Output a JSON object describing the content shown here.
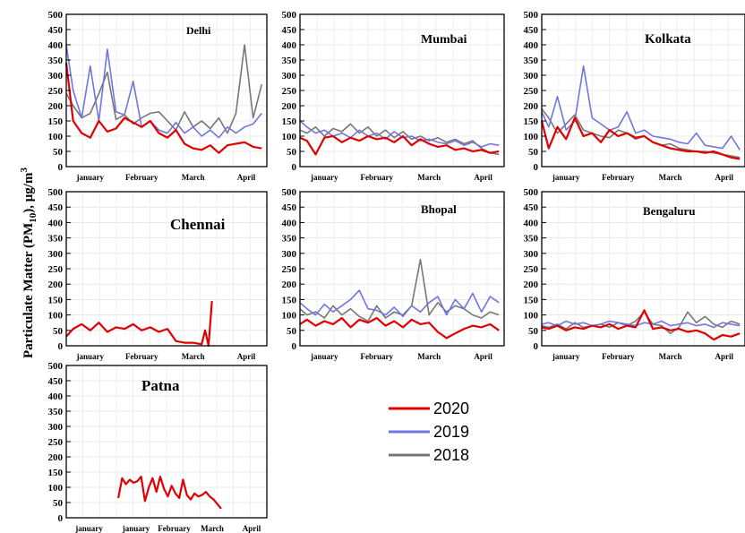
{
  "figure": {
    "ylabel": "Particulate Matter (PM10), μg/m3",
    "ylabel_main": "Particulate Matter (PM",
    "ylabel_sub": "10",
    "ylabel_unit": "), μg/m",
    "ylabel_sup": "3"
  },
  "legend": [
    {
      "label": "2020",
      "color": "#e00000"
    },
    {
      "label": "2019",
      "color": "#6f77dd"
    },
    {
      "label": "2018",
      "color": "#777777"
    }
  ],
  "chart_data": [
    {
      "type": "line",
      "title": "Delhi",
      "ylim": [
        0,
        500
      ],
      "yticks": [
        "0",
        "50",
        "100",
        "150",
        "200",
        "250",
        "300",
        "350",
        "400",
        "450",
        "500"
      ],
      "month_labels": [
        "january",
        "February",
        "March",
        "April"
      ],
      "x_unit": "day of year (1 Jan – late April)",
      "series": [
        {
          "name": "2020",
          "x": [
            1,
            5,
            10,
            15,
            20,
            25,
            30,
            35,
            40,
            45,
            50,
            55,
            60,
            65,
            70,
            75,
            80,
            85,
            90,
            95,
            100,
            105,
            110,
            115
          ],
          "values": [
            340,
            150,
            110,
            95,
            150,
            115,
            125,
            160,
            145,
            130,
            150,
            110,
            95,
            120,
            75,
            60,
            55,
            70,
            45,
            70,
            75,
            80,
            65,
            60
          ]
        },
        {
          "name": "2019",
          "x": [
            1,
            5,
            10,
            15,
            20,
            25,
            30,
            35,
            40,
            45,
            50,
            55,
            60,
            65,
            70,
            75,
            80,
            85,
            90,
            95,
            100,
            105,
            110,
            115
          ],
          "values": [
            400,
            250,
            160,
            330,
            150,
            385,
            180,
            170,
            280,
            130,
            150,
            120,
            110,
            145,
            110,
            130,
            100,
            120,
            95,
            130,
            110,
            130,
            140,
            175
          ]
        },
        {
          "name": "2018",
          "x": [
            1,
            5,
            10,
            15,
            20,
            25,
            30,
            35,
            40,
            45,
            50,
            55,
            60,
            65,
            70,
            75,
            80,
            85,
            90,
            95,
            100,
            105,
            110,
            115
          ],
          "values": [
            240,
            200,
            160,
            175,
            240,
            310,
            155,
            170,
            140,
            160,
            175,
            180,
            150,
            120,
            180,
            130,
            150,
            125,
            160,
            110,
            175,
            400,
            160,
            270
          ]
        }
      ]
    },
    {
      "type": "line",
      "title": "Mumbai",
      "ylim": [
        0,
        500
      ],
      "yticks": [
        "0",
        "50",
        "100",
        "150",
        "200",
        "250",
        "300",
        "350",
        "400",
        "450",
        "500"
      ],
      "month_labels": [
        "january",
        "February",
        "March",
        "April"
      ],
      "x_unit": "day of year (1 Jan – late April)",
      "series": [
        {
          "name": "2020",
          "x": [
            1,
            5,
            10,
            15,
            20,
            25,
            30,
            35,
            40,
            45,
            50,
            55,
            60,
            65,
            70,
            75,
            80,
            85,
            90,
            95,
            100,
            105,
            110,
            115
          ],
          "values": [
            95,
            85,
            40,
            95,
            100,
            80,
            95,
            85,
            100,
            90,
            95,
            80,
            100,
            70,
            90,
            75,
            65,
            70,
            55,
            60,
            50,
            55,
            45,
            50
          ]
        },
        {
          "name": "2019",
          "x": [
            1,
            5,
            10,
            15,
            20,
            25,
            30,
            35,
            40,
            45,
            50,
            55,
            60,
            65,
            70,
            75,
            80,
            85,
            90,
            95,
            100,
            105,
            110,
            115
          ],
          "values": [
            150,
            130,
            110,
            120,
            100,
            110,
            95,
            120,
            100,
            110,
            90,
            115,
            95,
            100,
            85,
            90,
            80,
            75,
            85,
            70,
            80,
            65,
            75,
            70
          ]
        },
        {
          "name": "2018",
          "x": [
            1,
            5,
            10,
            15,
            20,
            25,
            30,
            35,
            40,
            45,
            50,
            55,
            60,
            65,
            70,
            75,
            80,
            85,
            90,
            95,
            100,
            105,
            110,
            115
          ],
          "values": [
            120,
            110,
            130,
            100,
            125,
            115,
            140,
            110,
            130,
            100,
            120,
            95,
            115,
            90,
            100,
            85,
            95,
            80,
            90,
            75,
            85,
            60,
            45,
            40
          ]
        }
      ]
    },
    {
      "type": "line",
      "title": "Kolkata",
      "ylim": [
        0,
        500
      ],
      "yticks": [
        "0",
        "50",
        "100",
        "150",
        "200",
        "250",
        "300",
        "350",
        "400",
        "450",
        "500"
      ],
      "month_labels": [
        "january",
        "February",
        "March",
        "April"
      ],
      "x_unit": "day of year (1 Jan – late April)",
      "series": [
        {
          "name": "2020",
          "x": [
            1,
            5,
            10,
            15,
            20,
            25,
            30,
            35,
            40,
            45,
            50,
            55,
            60,
            65,
            70,
            75,
            80,
            85,
            90,
            95,
            100,
            105,
            110,
            115
          ],
          "values": [
            150,
            60,
            130,
            90,
            160,
            100,
            110,
            80,
            120,
            100,
            110,
            95,
            100,
            80,
            70,
            60,
            55,
            50,
            50,
            45,
            50,
            40,
            30,
            25
          ]
        },
        {
          "name": "2019",
          "x": [
            1,
            5,
            10,
            15,
            20,
            25,
            30,
            35,
            40,
            45,
            50,
            55,
            60,
            65,
            70,
            75,
            80,
            85,
            90,
            95,
            100,
            105,
            110,
            115
          ],
          "values": [
            180,
            130,
            230,
            120,
            150,
            330,
            160,
            140,
            120,
            130,
            180,
            110,
            120,
            100,
            95,
            90,
            80,
            75,
            110,
            70,
            65,
            60,
            100,
            55
          ]
        },
        {
          "name": "2018",
          "x": [
            1,
            5,
            10,
            15,
            20,
            25,
            30,
            35,
            40,
            45,
            50,
            55,
            60,
            65,
            70,
            75,
            80,
            85,
            90,
            95,
            100,
            105,
            110,
            115
          ],
          "values": [
            190,
            160,
            110,
            140,
            170,
            120,
            110,
            100,
            95,
            120,
            110,
            90,
            100,
            80,
            70,
            75,
            60,
            55,
            50,
            50,
            45,
            40,
            35,
            30
          ]
        }
      ]
    },
    {
      "type": "line",
      "title": "Chennai",
      "ylim": [
        0,
        500
      ],
      "yticks": [
        "0",
        "50",
        "100",
        "150",
        "200",
        "250",
        "300",
        "350",
        "400",
        "450",
        "500"
      ],
      "month_labels": [
        "january",
        "February",
        "March",
        "April"
      ],
      "x_unit": "day of year (1 Jan – late April)",
      "series": [
        {
          "name": "2020",
          "x": [
            1,
            5,
            10,
            15,
            20,
            25,
            30,
            35,
            40,
            45,
            50,
            55,
            60,
            65,
            70,
            75,
            80,
            82,
            84,
            86
          ],
          "values": [
            30,
            55,
            70,
            50,
            75,
            45,
            60,
            55,
            70,
            50,
            60,
            45,
            55,
            15,
            10,
            10,
            5,
            50,
            0,
            145
          ]
        }
      ]
    },
    {
      "type": "line",
      "title": "Bhopal",
      "ylim": [
        0,
        500
      ],
      "yticks": [
        "0",
        "50",
        "100",
        "150",
        "200",
        "250",
        "300",
        "350",
        "400",
        "450",
        "500"
      ],
      "month_labels": [
        "january",
        "February",
        "March",
        "April"
      ],
      "x_unit": "day of year (1 Jan – late April)",
      "series": [
        {
          "name": "2020",
          "x": [
            1,
            5,
            10,
            15,
            20,
            25,
            30,
            35,
            40,
            45,
            50,
            55,
            60,
            65,
            70,
            75,
            80,
            85,
            90,
            95,
            100,
            105,
            110,
            115
          ],
          "values": [
            70,
            85,
            65,
            80,
            70,
            90,
            60,
            85,
            75,
            90,
            65,
            80,
            60,
            85,
            70,
            75,
            45,
            25,
            40,
            55,
            65,
            60,
            70,
            50
          ]
        },
        {
          "name": "2019",
          "x": [
            1,
            5,
            10,
            15,
            20,
            25,
            30,
            35,
            40,
            45,
            50,
            55,
            60,
            65,
            70,
            75,
            80,
            85,
            90,
            95,
            100,
            105,
            110,
            115
          ],
          "values": [
            140,
            120,
            100,
            135,
            110,
            130,
            150,
            180,
            120,
            115,
            100,
            125,
            95,
            130,
            110,
            140,
            160,
            100,
            150,
            120,
            170,
            110,
            160,
            140
          ]
        },
        {
          "name": "2018",
          "x": [
            1,
            5,
            10,
            15,
            20,
            25,
            30,
            35,
            40,
            45,
            50,
            55,
            60,
            65,
            70,
            75,
            80,
            85,
            90,
            95,
            100,
            105,
            110,
            115
          ],
          "values": [
            120,
            100,
            110,
            90,
            130,
            100,
            120,
            95,
            80,
            130,
            90,
            110,
            100,
            130,
            280,
            100,
            140,
            110,
            130,
            120,
            100,
            90,
            110,
            100
          ]
        }
      ]
    },
    {
      "type": "line",
      "title": "Bengaluru",
      "ylim": [
        0,
        500
      ],
      "yticks": [
        "0",
        "50",
        "100",
        "150",
        "200",
        "250",
        "300",
        "350",
        "400",
        "450",
        "500"
      ],
      "month_labels": [
        "january",
        "February",
        "March",
        "April"
      ],
      "x_unit": "day of year (1 Jan – late April)",
      "series": [
        {
          "name": "2020",
          "x": [
            1,
            5,
            10,
            15,
            20,
            25,
            30,
            35,
            40,
            45,
            50,
            55,
            60,
            65,
            70,
            75,
            80,
            85,
            90,
            95,
            100,
            105,
            110,
            115
          ],
          "values": [
            60,
            55,
            65,
            50,
            60,
            55,
            65,
            60,
            70,
            55,
            65,
            60,
            115,
            55,
            60,
            50,
            55,
            45,
            50,
            40,
            20,
            35,
            30,
            40
          ]
        },
        {
          "name": "2019",
          "x": [
            1,
            5,
            10,
            15,
            20,
            25,
            30,
            35,
            40,
            45,
            50,
            55,
            60,
            65,
            70,
            75,
            80,
            85,
            90,
            95,
            100,
            105,
            110,
            115
          ],
          "values": [
            70,
            75,
            65,
            80,
            70,
            75,
            65,
            70,
            80,
            75,
            70,
            65,
            75,
            70,
            80,
            65,
            70,
            75,
            65,
            70,
            60,
            75,
            70,
            65
          ]
        },
        {
          "name": "2018",
          "x": [
            1,
            5,
            10,
            15,
            20,
            25,
            30,
            35,
            40,
            45,
            50,
            55,
            60,
            65,
            70,
            75,
            80,
            85,
            90,
            95,
            100,
            105,
            110,
            115
          ],
          "values": [
            65,
            60,
            70,
            55,
            75,
            60,
            65,
            70,
            60,
            75,
            65,
            80,
            110,
            70,
            65,
            40,
            60,
            110,
            75,
            95,
            70,
            60,
            80,
            70
          ]
        }
      ]
    },
    {
      "type": "line",
      "title": "Patna",
      "ylim": [
        0,
        500
      ],
      "yticks": [
        "0",
        "50",
        "100",
        "150",
        "200",
        "250",
        "300",
        "350",
        "400",
        "450",
        "500"
      ],
      "month_labels": [
        "january",
        "january",
        "February",
        "March",
        "April"
      ],
      "x_unit": "day of year (1 Jan – late April)",
      "series": [
        {
          "name": "2020",
          "x": [
            1,
            4,
            7,
            10,
            13,
            16,
            19,
            22,
            25,
            28,
            31,
            34,
            37,
            40,
            43,
            46,
            49,
            52,
            55,
            58,
            61,
            64,
            67,
            70,
            73,
            76,
            79,
            82
          ],
          "values": [
            65,
            130,
            110,
            125,
            115,
            120,
            135,
            55,
            100,
            130,
            85,
            135,
            95,
            70,
            105,
            80,
            65,
            125,
            75,
            60,
            80,
            70,
            75,
            85,
            70,
            60,
            45,
            30
          ]
        }
      ]
    }
  ]
}
